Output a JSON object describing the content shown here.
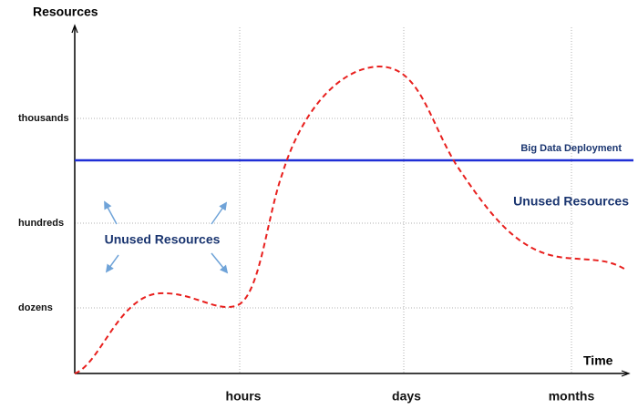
{
  "axes": {
    "y_title": "Resources",
    "x_title": "Time",
    "y_labels": [
      "thousands",
      "hundreds",
      "dozens"
    ],
    "x_labels": [
      "hours",
      "days",
      "months"
    ]
  },
  "annotations": {
    "deployment_line": "Big Data Deployment",
    "unused_right": "Unused Resources",
    "unused_left": "Unused Resources"
  }
}
